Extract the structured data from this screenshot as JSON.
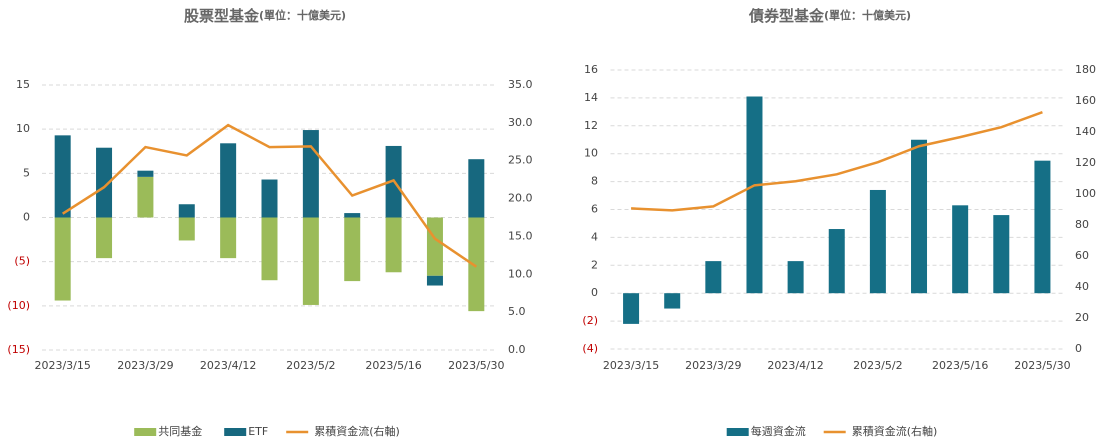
{
  "chart_data": [
    {
      "type": "bar",
      "title": "股票型基金",
      "subtitle": "(單位：十億美元)",
      "stacked": true,
      "categories": [
        "2023/3/15",
        null,
        "2023/3/29",
        null,
        "2023/4/12",
        null,
        "2023/5/2",
        null,
        "2023/5/16",
        null,
        "2023/5/30"
      ],
      "series": [
        {
          "name": "共同基金",
          "color": "#9bbb59",
          "values": [
            -9.4,
            -4.6,
            4.6,
            -2.6,
            -4.6,
            -7.1,
            -9.9,
            -7.2,
            -6.2,
            -6.6,
            -10.6
          ]
        },
        {
          "name": "ETF",
          "color": "#17687f",
          "values": [
            9.3,
            7.9,
            0.7,
            1.5,
            8.4,
            4.3,
            9.9,
            0.5,
            8.1,
            -1.1,
            6.6
          ]
        },
        {
          "name": "累積資金流(右軸)",
          "type": "line",
          "axis": "y2",
          "color": "#e8912f",
          "values": [
            18.0,
            21.5,
            26.8,
            25.7,
            29.7,
            26.8,
            26.9,
            20.4,
            22.4,
            14.7,
            11.0
          ]
        }
      ],
      "ylim": [
        -15,
        15
      ],
      "yticks": [
        15,
        10,
        5,
        0,
        {
          "value": -5,
          "label": "(5)"
        },
        {
          "value": -10,
          "label": "(10)"
        },
        {
          "value": -15,
          "label": "(15)"
        }
      ],
      "y2lim": [
        0,
        35
      ],
      "y2ticks": [
        {
          "value": 35,
          "label": "35.0"
        },
        {
          "value": 30,
          "label": "30.0"
        },
        {
          "value": 25,
          "label": "25.0"
        },
        {
          "value": 20,
          "label": "20.0"
        },
        {
          "value": 15,
          "label": "15.0"
        },
        {
          "value": 10,
          "label": "10.0"
        },
        {
          "value": 5,
          "label": "5.0"
        },
        {
          "value": 0,
          "label": "0.0"
        }
      ],
      "grid": true,
      "negative_label_color": "#c00000",
      "legend": "bottom"
    },
    {
      "type": "bar",
      "title": "債券型基金",
      "subtitle": "(單位：十億美元)",
      "stacked": true,
      "categories": [
        "2023/3/15",
        null,
        "2023/3/29",
        null,
        "2023/4/12",
        null,
        "2023/5/2",
        null,
        "2023/5/16",
        null,
        "2023/5/30"
      ],
      "series": [
        {
          "name": "每週資金流",
          "color": "#156f86",
          "values": [
            -2.2,
            -1.1,
            2.3,
            14.1,
            2.3,
            4.6,
            7.4,
            11.0,
            6.3,
            5.6,
            9.5
          ]
        },
        {
          "name": "累積資金流(右軸)",
          "type": "line",
          "axis": "y2",
          "color": "#e8912f",
          "values": [
            90.7,
            89.4,
            92.0,
            105.6,
            108.2,
            112.7,
            120.5,
            130.8,
            136.7,
            143.1,
            152.8
          ]
        }
      ],
      "ylim": [
        -4,
        16
      ],
      "yticks": [
        16,
        14,
        12,
        10,
        8,
        6,
        4,
        2,
        0,
        {
          "value": -2,
          "label": "(2)"
        },
        {
          "value": -4,
          "label": "(4)"
        }
      ],
      "y2lim": [
        0,
        180
      ],
      "y2ticks": [
        180,
        160,
        140,
        120,
        100,
        80,
        60,
        40,
        20,
        0
      ],
      "grid": true,
      "negative_label_color": "#c00000",
      "legend": "bottom"
    }
  ]
}
